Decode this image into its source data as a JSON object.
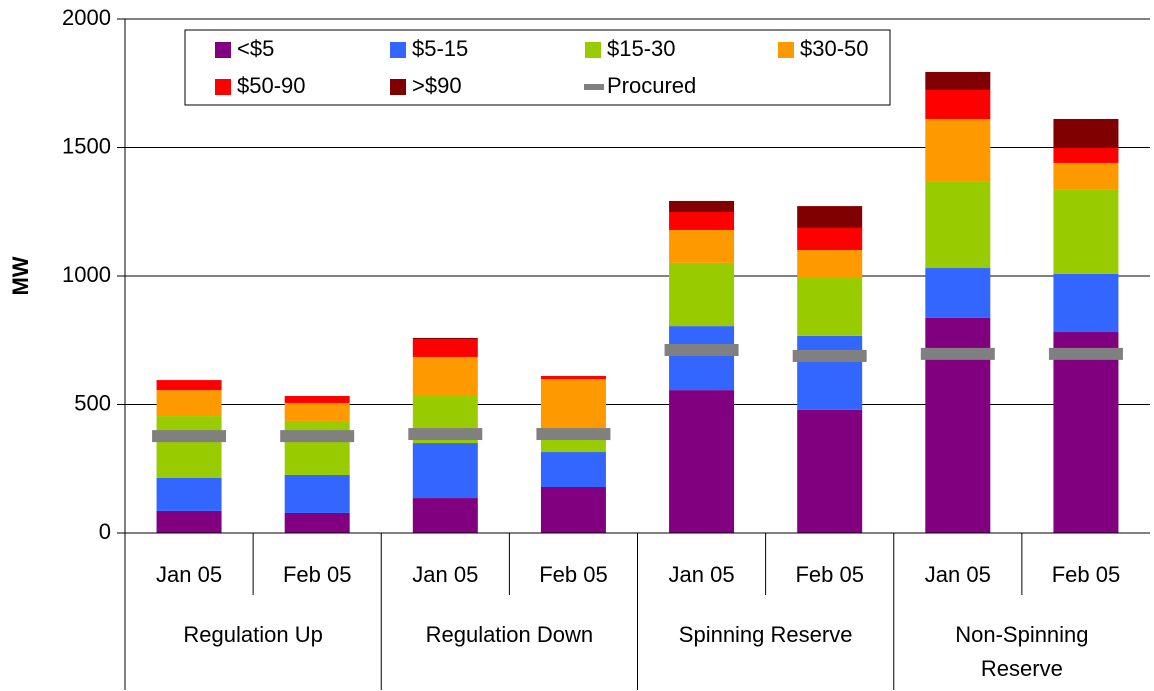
{
  "chart_data": {
    "type": "stacked-bar",
    "y_label": "MW",
    "categories": [
      "Jan 05",
      "Feb 05",
      "Jan 05",
      "Feb 05",
      "Jan 05",
      "Feb 05",
      "Jan 05",
      "Feb 05"
    ],
    "groups": [
      "Regulation Up",
      "Regulation Down",
      "Spinning Reserve",
      "Non-Spinning Reserve"
    ],
    "series": [
      {
        "name": "<$5",
        "color": "#800080",
        "values": [
          86,
          78,
          136,
          179,
          556,
          479,
          837,
          782
        ]
      },
      {
        "name": "$5-15",
        "color": "#3366ff",
        "values": [
          128,
          148,
          214,
          136,
          249,
          288,
          194,
          226
        ]
      },
      {
        "name": "$15-30",
        "color": "#99cc00",
        "values": [
          241,
          210,
          183,
          47,
          246,
          229,
          335,
          327
        ]
      },
      {
        "name": "$30-50",
        "color": "#ff9900",
        "values": [
          101,
          70,
          152,
          237,
          128,
          105,
          245,
          105
        ]
      },
      {
        "name": "$50-90",
        "color": "#ff0000",
        "values": [
          39,
          27,
          70,
          12,
          70,
          86,
          113,
          58
        ]
      },
      {
        "name": ">$90",
        "color": "#800000",
        "values": [
          0,
          0,
          4,
          0,
          43,
          85,
          70,
          113
        ]
      }
    ],
    "procured": {
      "name": "Procured",
      "color": "#808080",
      "values": [
        377,
        377,
        385,
        385,
        712,
        689,
        697,
        697
      ]
    },
    "ylim": [
      0,
      2000
    ],
    "yticks": [
      0,
      500,
      1000,
      1500,
      2000
    ],
    "grid": true
  }
}
